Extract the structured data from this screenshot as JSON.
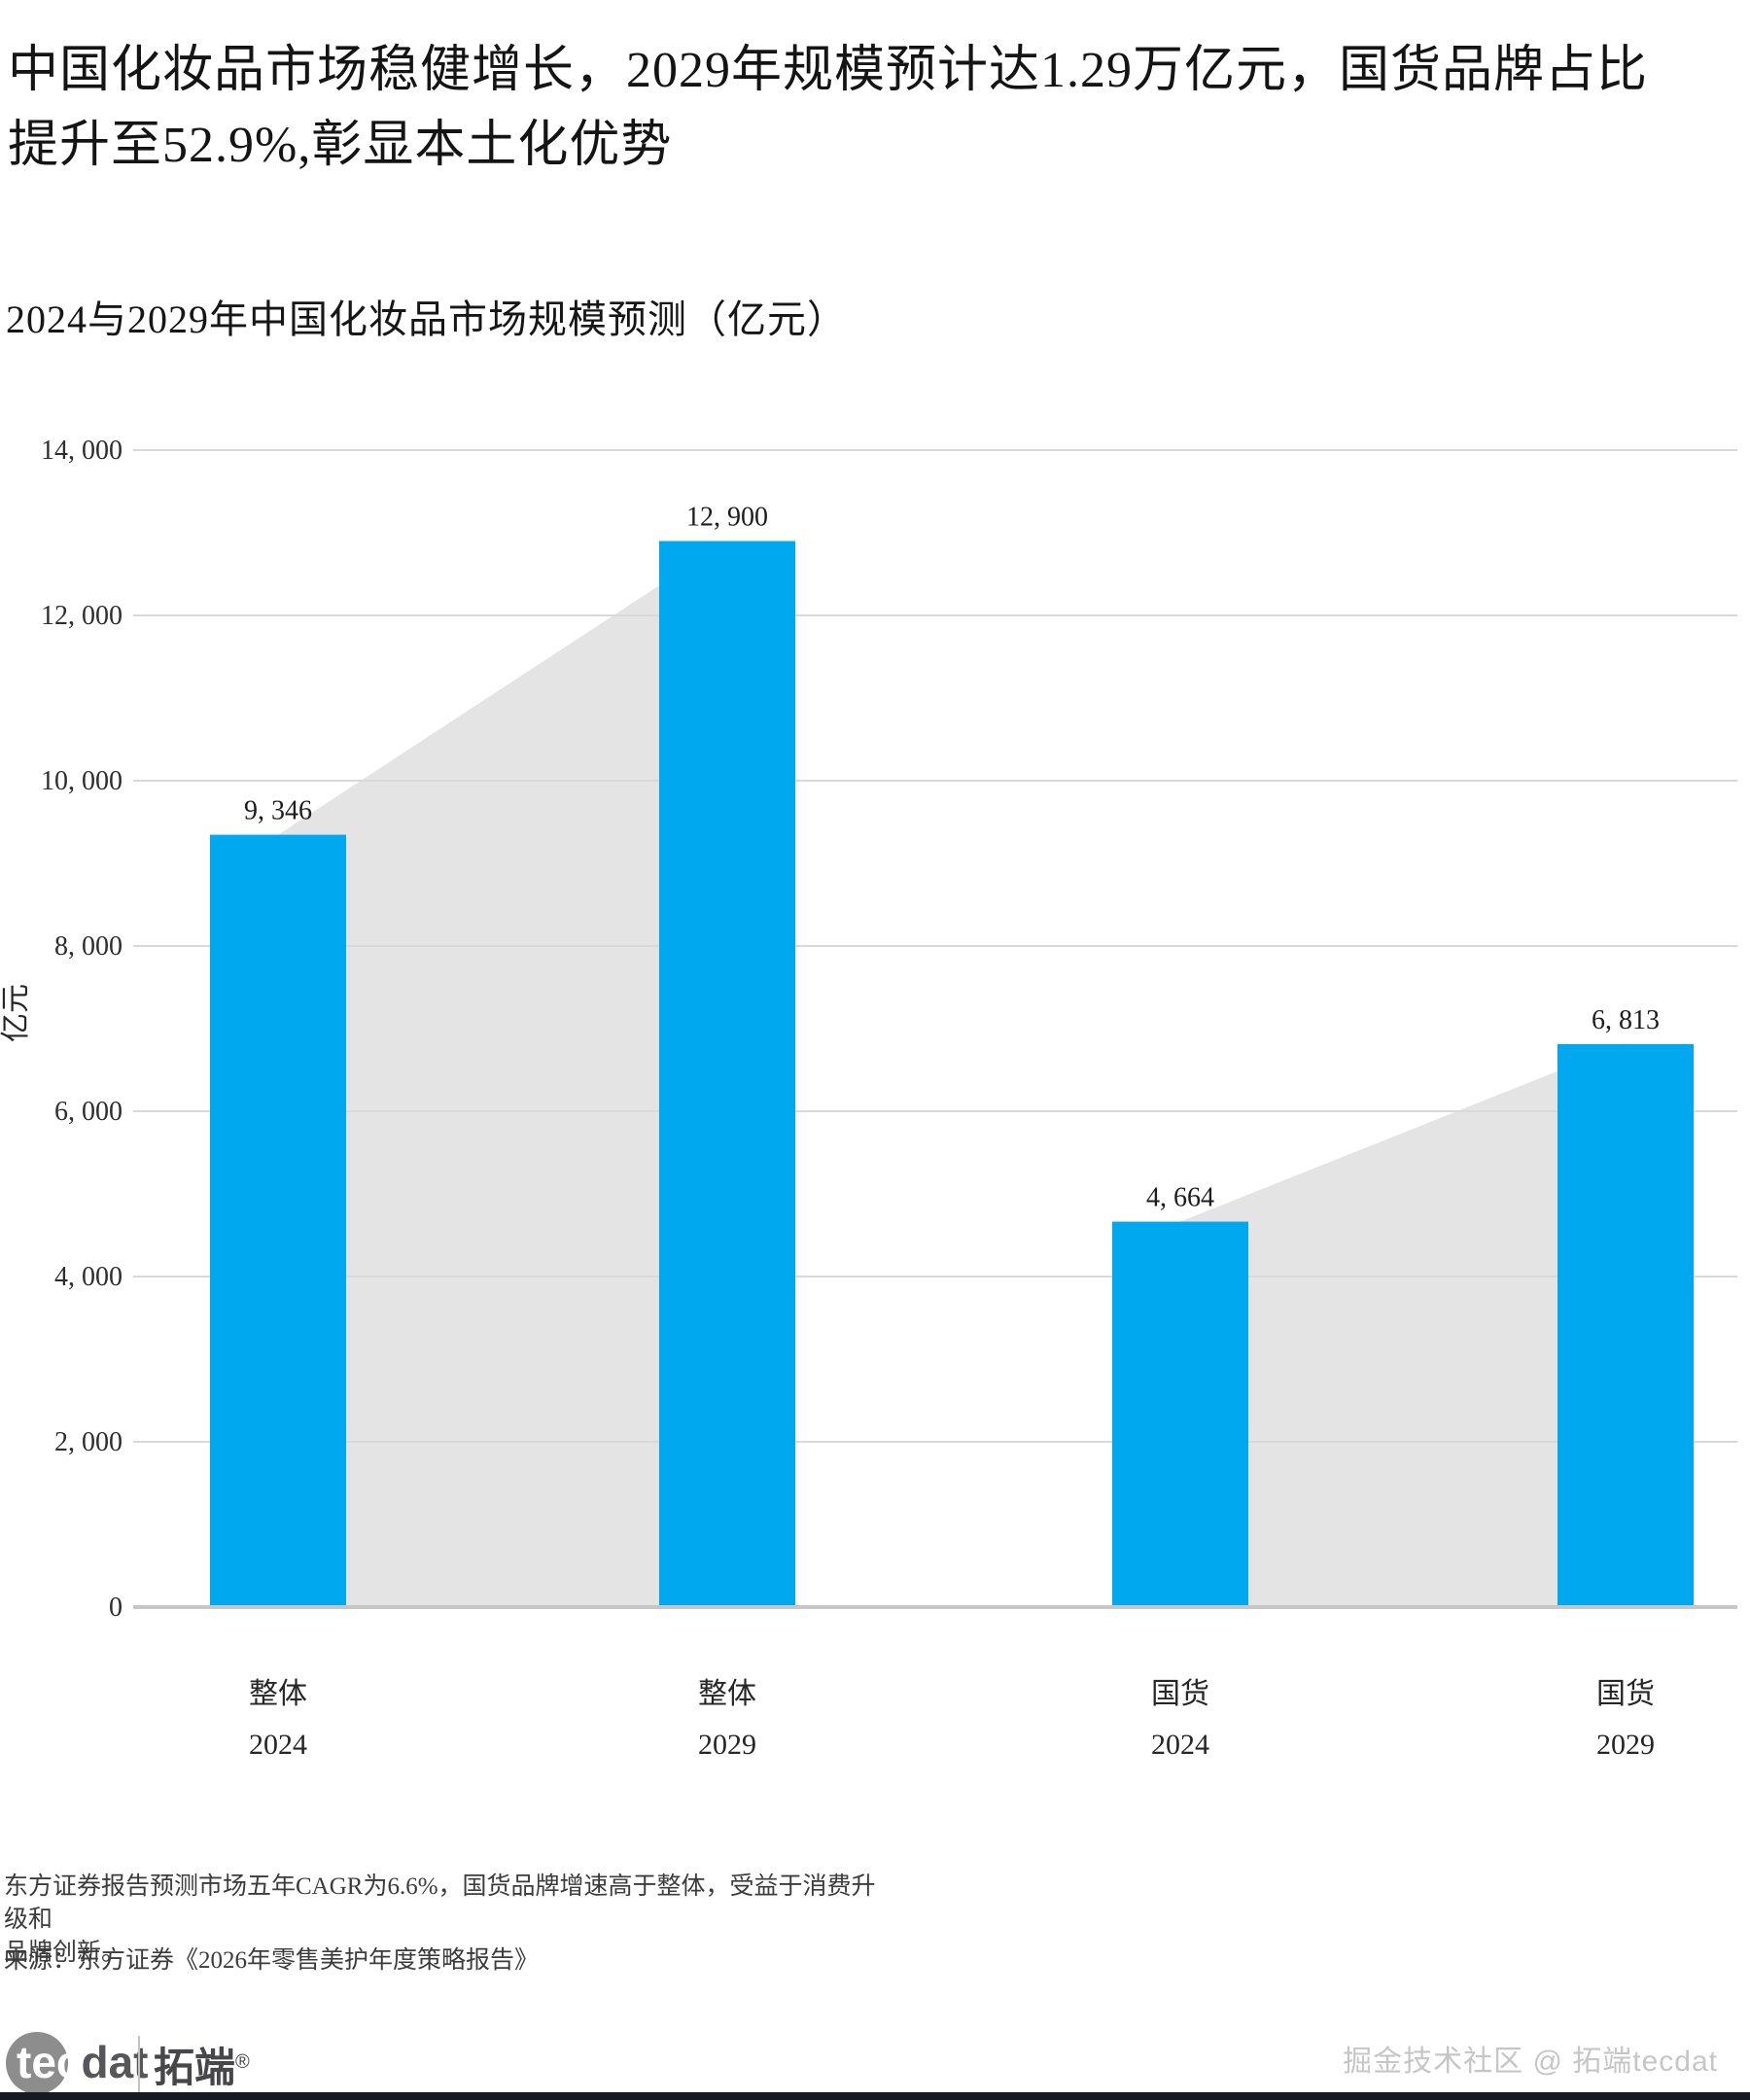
{
  "header": {
    "title": "中国化妆品市场稳健增长，2029年规模预计达1.29万亿元，国货品牌占比\n提升至52.9%,彰显本土化优势",
    "subtitle": "2024与2029年中国化妆品市场规模预测（亿元）"
  },
  "chart_data": {
    "type": "bar",
    "title": "2024与2029年中国化妆品市场规模预测（亿元）",
    "categories": [
      "整体 2024",
      "整体 2029",
      "国货 2024",
      "国货 2029"
    ],
    "category_lines": [
      [
        "整体",
        "2024"
      ],
      [
        "整体",
        "2029"
      ],
      [
        "国货",
        "2024"
      ],
      [
        "国货",
        "2029"
      ]
    ],
    "values": [
      9346,
      12900,
      4664,
      6813
    ],
    "value_labels": [
      "9, 346",
      "12, 900",
      "4, 664",
      "6, 813"
    ],
    "xlabel": "",
    "ylabel": "亿元",
    "ylim": [
      0,
      14000
    ],
    "ytick_step": 2000,
    "ytick_labels": [
      "0",
      "2, 000",
      "4, 000",
      "6, 000",
      "8, 000",
      "10, 000",
      "12, 000",
      "14, 000"
    ],
    "grid": true,
    "legend": "none",
    "bar_color": "#00a8f0",
    "area_color": "#e4e4e4",
    "gridline_color": "#d9d9d9",
    "baseline_color": "#c6c6c6",
    "connector_pairs": [
      [
        0,
        1
      ],
      [
        2,
        3
      ]
    ]
  },
  "footnote": {
    "note": "东方证券报告预测市场五年CAGR为6.6%，国货品牌增速高于整体，受益于消费升级和\n品牌创新。",
    "source": "来源：东方证券《2026年零售美护年度策略报告》"
  },
  "branding": {
    "logo_tec": "tec",
    "logo_dat": "dat",
    "logo_cn": "拓端",
    "logo_reg": "®",
    "watermark": "掘金技术社区 @ 拓端tecdat"
  }
}
